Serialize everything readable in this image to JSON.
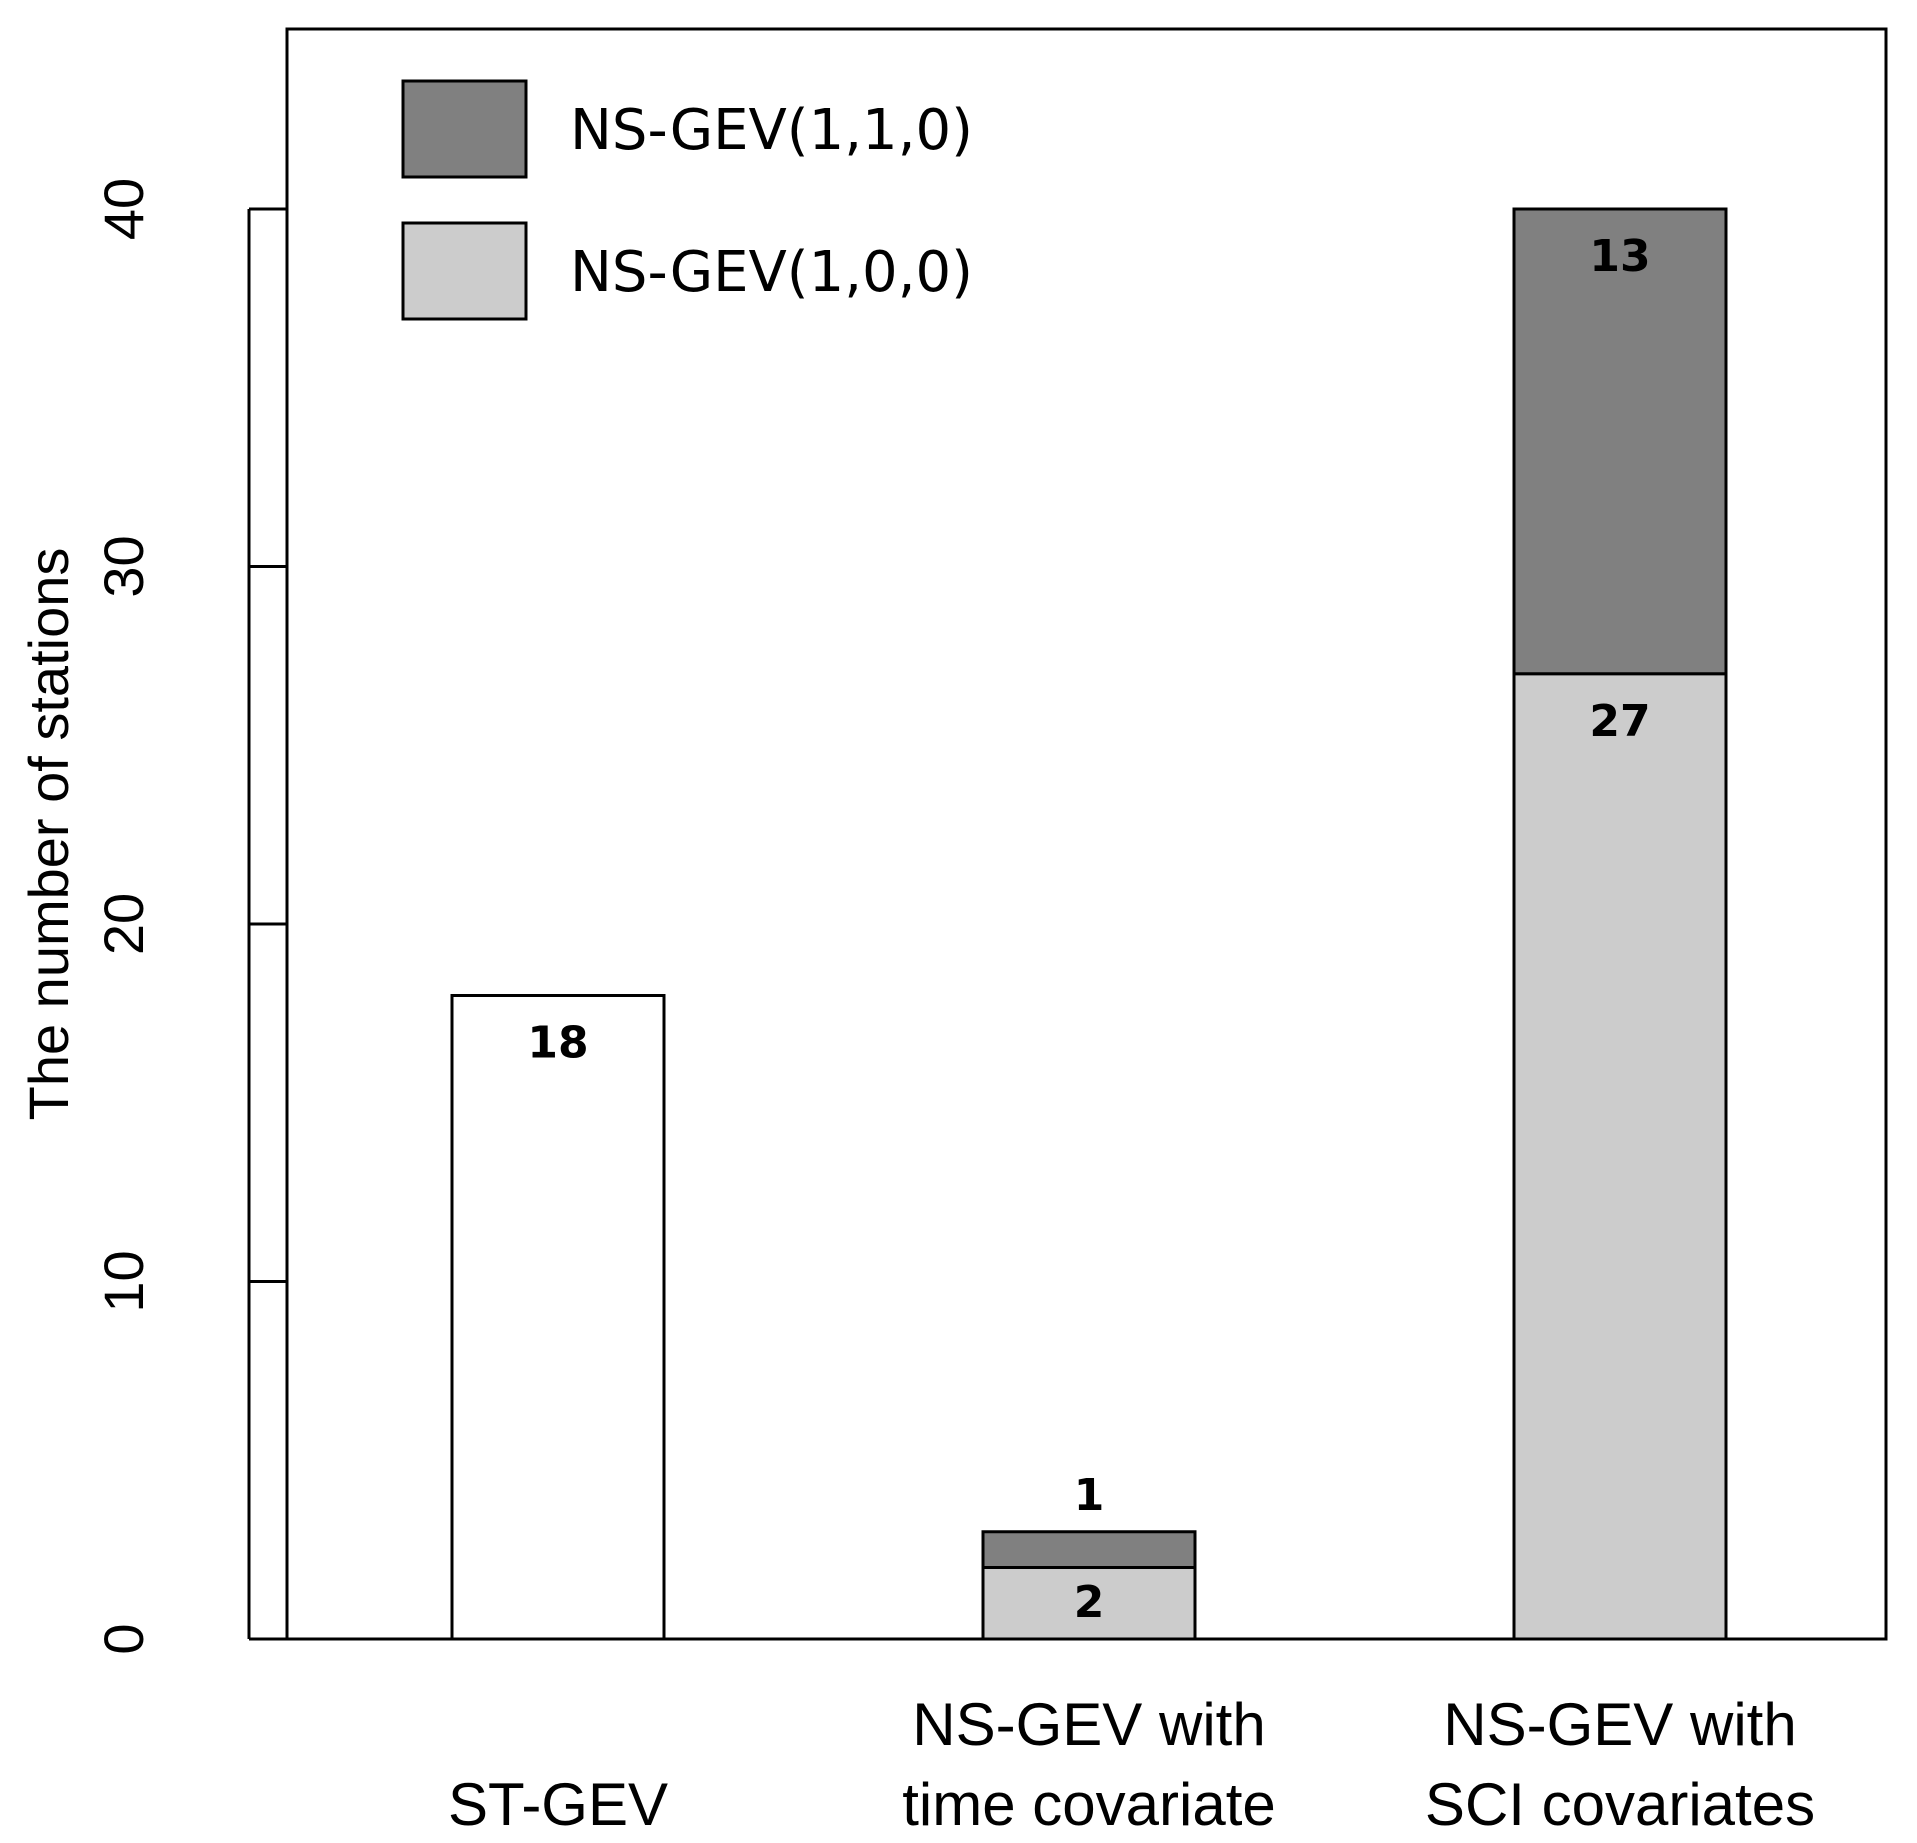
{
  "chart_data": {
    "type": "bar",
    "stacked": true,
    "categories": [
      [
        "ST-GEV"
      ],
      [
        "NS-GEV with",
        "time covariate"
      ],
      [
        "NS-GEV with",
        "SCI covariates"
      ]
    ],
    "series": [
      {
        "name": "ST-GEV",
        "values": [
          18,
          0,
          0
        ],
        "color": "#ffffff",
        "in_legend": false
      },
      {
        "name": "NS-GEV(1,0,0)",
        "values": [
          0,
          2,
          27
        ],
        "color": "#cccccc",
        "in_legend": true
      },
      {
        "name": "NS-GEV(1,1,0)",
        "values": [
          0,
          1,
          13
        ],
        "color": "#808080",
        "in_legend": true
      }
    ],
    "data_labels": [
      [
        "18"
      ],
      [
        "2",
        "1"
      ],
      [
        "27",
        "13"
      ]
    ],
    "title": "",
    "xlabel": "",
    "ylabel": "The number of stations",
    "ylim": [
      0,
      45
    ],
    "yticks": [
      0,
      10,
      20,
      30,
      40
    ],
    "ytick_labels": [
      "0",
      "10",
      "20",
      "30",
      "40"
    ],
    "legend": {
      "placement": "top-left",
      "entries": [
        "NS-GEV(1,1,0)",
        "NS-GEV(1,0,0)"
      ]
    },
    "grid": false
  }
}
